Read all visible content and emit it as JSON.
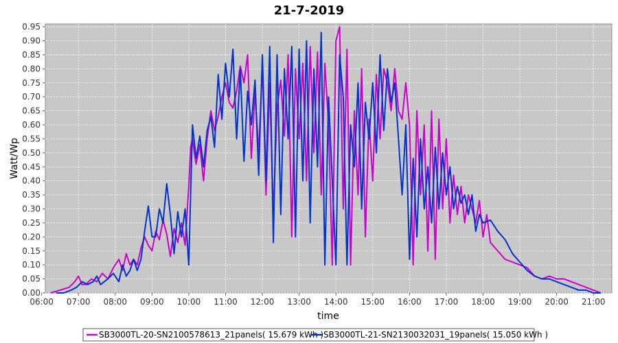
{
  "chart_data": {
    "type": "line",
    "title": "21-7-2019",
    "xlabel": "time",
    "ylabel": "Watt/Wp",
    "xlim": [
      6.1,
      21.5
    ],
    "ylim": [
      0,
      0.96
    ],
    "x_ticks": [
      "06:00",
      "07:00",
      "08:00",
      "09:00",
      "10:00",
      "11:00",
      "12:00",
      "13:00",
      "14:00",
      "15:00",
      "16:00",
      "17:00",
      "18:00",
      "19:00",
      "20:00",
      "21:00"
    ],
    "y_ticks": [
      "0.00",
      "0.05",
      "0.10",
      "0.15",
      "0.20",
      "0.25",
      "0.30",
      "0.35",
      "0.40",
      "0.45",
      "0.50",
      "0.55",
      "0.60",
      "0.65",
      "0.70",
      "0.75",
      "0.80",
      "0.85",
      "0.90",
      "0.95"
    ],
    "grid": true,
    "legend": "bottom",
    "series": [
      {
        "name": "SB3000TL-20-SN2100578613_21panels( 15.679 kWh )",
        "color": "#cc00cc",
        "x": [
          6.25,
          6.5,
          6.75,
          6.9,
          7.0,
          7.1,
          7.2,
          7.35,
          7.5,
          7.65,
          7.8,
          7.95,
          8.1,
          8.2,
          8.3,
          8.4,
          8.5,
          8.6,
          8.7,
          8.8,
          8.9,
          9.0,
          9.1,
          9.2,
          9.3,
          9.4,
          9.5,
          9.6,
          9.7,
          9.8,
          9.9,
          10.0,
          10.05,
          10.1,
          10.15,
          10.2,
          10.3,
          10.4,
          10.5,
          10.6,
          10.7,
          10.8,
          10.9,
          11.0,
          11.1,
          11.2,
          11.3,
          11.4,
          11.5,
          11.6,
          11.7,
          11.8,
          11.9,
          12.0,
          12.1,
          12.2,
          12.3,
          12.4,
          12.5,
          12.6,
          12.7,
          12.8,
          12.9,
          13.0,
          13.1,
          13.2,
          13.3,
          13.4,
          13.5,
          13.6,
          13.7,
          13.8,
          13.9,
          14.0,
          14.1,
          14.2,
          14.3,
          14.4,
          14.5,
          14.6,
          14.7,
          14.8,
          14.9,
          15.0,
          15.1,
          15.2,
          15.3,
          15.4,
          15.5,
          15.6,
          15.7,
          15.8,
          15.9,
          16.0,
          16.1,
          16.2,
          16.3,
          16.4,
          16.5,
          16.6,
          16.7,
          16.8,
          16.9,
          17.0,
          17.1,
          17.2,
          17.3,
          17.4,
          17.5,
          17.6,
          17.7,
          17.8,
          17.9,
          18.0,
          18.1,
          18.2,
          18.4,
          18.6,
          18.8,
          19.0,
          19.2,
          19.4,
          19.6,
          19.8,
          20.0,
          20.2,
          20.4,
          20.6,
          20.8,
          21.0,
          21.2
        ],
        "y": [
          0.0,
          0.01,
          0.02,
          0.04,
          0.06,
          0.03,
          0.03,
          0.05,
          0.04,
          0.07,
          0.05,
          0.09,
          0.12,
          0.08,
          0.14,
          0.1,
          0.12,
          0.1,
          0.16,
          0.2,
          0.17,
          0.15,
          0.22,
          0.19,
          0.26,
          0.21,
          0.13,
          0.23,
          0.18,
          0.25,
          0.17,
          0.38,
          0.52,
          0.55,
          0.5,
          0.46,
          0.53,
          0.4,
          0.55,
          0.65,
          0.58,
          0.63,
          0.7,
          0.75,
          0.68,
          0.66,
          0.72,
          0.81,
          0.75,
          0.85,
          0.48,
          0.72,
          0.5,
          0.81,
          0.35,
          0.75,
          0.28,
          0.66,
          0.76,
          0.56,
          0.85,
          0.2,
          0.8,
          0.55,
          0.82,
          0.4,
          0.88,
          0.5,
          0.86,
          0.35,
          0.82,
          0.6,
          0.1,
          0.9,
          0.95,
          0.3,
          0.87,
          0.1,
          0.65,
          0.35,
          0.8,
          0.2,
          0.62,
          0.4,
          0.78,
          0.55,
          0.8,
          0.75,
          0.65,
          0.8,
          0.65,
          0.62,
          0.75,
          0.6,
          0.1,
          0.65,
          0.35,
          0.6,
          0.15,
          0.65,
          0.12,
          0.62,
          0.3,
          0.55,
          0.25,
          0.42,
          0.28,
          0.38,
          0.25,
          0.35,
          0.3,
          0.25,
          0.33,
          0.2,
          0.28,
          0.18,
          0.15,
          0.12,
          0.11,
          0.1,
          0.09,
          0.06,
          0.05,
          0.06,
          0.05,
          0.05,
          0.04,
          0.03,
          0.02,
          0.01,
          0.0
        ]
      },
      {
        "name": "SB3000TL-21-SN2130032031_19panels( 15.050 kWh )",
        "color": "#0033cc",
        "x": [
          6.4,
          6.6,
          6.8,
          6.95,
          7.1,
          7.25,
          7.4,
          7.5,
          7.6,
          7.8,
          7.95,
          8.1,
          8.2,
          8.3,
          8.4,
          8.5,
          8.6,
          8.7,
          8.8,
          8.9,
          9.0,
          9.1,
          9.2,
          9.3,
          9.4,
          9.5,
          9.6,
          9.7,
          9.8,
          9.9,
          10.0,
          10.1,
          10.2,
          10.3,
          10.4,
          10.5,
          10.6,
          10.7,
          10.8,
          10.9,
          11.0,
          11.1,
          11.2,
          11.3,
          11.4,
          11.5,
          11.6,
          11.7,
          11.8,
          11.9,
          12.0,
          12.1,
          12.2,
          12.3,
          12.4,
          12.5,
          12.6,
          12.7,
          12.8,
          12.9,
          13.0,
          13.1,
          13.2,
          13.3,
          13.4,
          13.5,
          13.6,
          13.7,
          13.8,
          13.9,
          14.0,
          14.1,
          14.2,
          14.3,
          14.4,
          14.5,
          14.6,
          14.7,
          14.8,
          14.9,
          15.0,
          15.1,
          15.2,
          15.3,
          15.4,
          15.5,
          15.6,
          15.7,
          15.8,
          15.9,
          16.0,
          16.1,
          16.2,
          16.3,
          16.4,
          16.5,
          16.6,
          16.7,
          16.8,
          16.9,
          17.0,
          17.1,
          17.2,
          17.3,
          17.4,
          17.5,
          17.6,
          17.7,
          17.8,
          17.9,
          18.0,
          18.2,
          18.4,
          18.6,
          18.8,
          19.0,
          19.2,
          19.4,
          19.6,
          19.8,
          20.0,
          20.2,
          20.4,
          20.6,
          20.8,
          21.0,
          21.2
        ],
        "y": [
          0.0,
          0.0,
          0.01,
          0.02,
          0.04,
          0.03,
          0.04,
          0.06,
          0.03,
          0.05,
          0.07,
          0.04,
          0.1,
          0.06,
          0.08,
          0.12,
          0.08,
          0.12,
          0.22,
          0.31,
          0.2,
          0.2,
          0.3,
          0.25,
          0.39,
          0.28,
          0.14,
          0.29,
          0.2,
          0.3,
          0.1,
          0.6,
          0.48,
          0.56,
          0.45,
          0.58,
          0.63,
          0.52,
          0.78,
          0.62,
          0.82,
          0.7,
          0.87,
          0.55,
          0.8,
          0.47,
          0.72,
          0.6,
          0.76,
          0.42,
          0.85,
          0.4,
          0.88,
          0.18,
          0.85,
          0.28,
          0.8,
          0.55,
          0.88,
          0.2,
          0.87,
          0.4,
          0.9,
          0.25,
          0.8,
          0.45,
          0.93,
          0.1,
          0.7,
          0.4,
          0.1,
          0.85,
          0.7,
          0.1,
          0.6,
          0.45,
          0.75,
          0.3,
          0.68,
          0.55,
          0.75,
          0.5,
          0.85,
          0.58,
          0.8,
          0.68,
          0.75,
          0.55,
          0.35,
          0.6,
          0.12,
          0.48,
          0.2,
          0.55,
          0.3,
          0.45,
          0.25,
          0.52,
          0.3,
          0.5,
          0.35,
          0.45,
          0.3,
          0.38,
          0.32,
          0.35,
          0.28,
          0.35,
          0.22,
          0.28,
          0.25,
          0.26,
          0.22,
          0.19,
          0.14,
          0.11,
          0.08,
          0.06,
          0.05,
          0.05,
          0.04,
          0.03,
          0.02,
          0.01,
          0.01,
          0.0,
          0.0
        ]
      }
    ]
  }
}
